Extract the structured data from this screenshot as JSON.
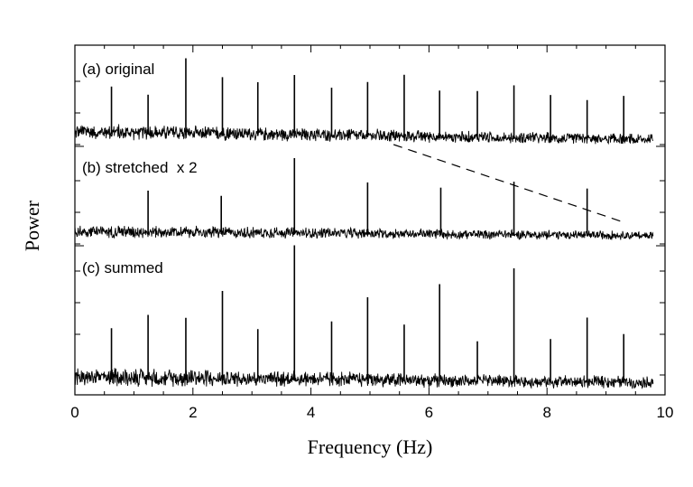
{
  "chart_data": {
    "type": "line",
    "title": "",
    "xlabel": "Frequency (Hz)",
    "ylabel": "Power",
    "xlim": [
      0,
      10
    ],
    "x_ticks": [
      "0",
      "2",
      "4",
      "6",
      "8",
      "10"
    ],
    "grid": false,
    "noise_floor_x_range": [
      0,
      9.8
    ],
    "series": [
      {
        "name": "(a) original",
        "color": "#000000",
        "peaks": [
          {
            "x": 0.62,
            "y": 0.62
          },
          {
            "x": 1.24,
            "y": 0.52
          },
          {
            "x": 1.88,
            "y": 1.0
          },
          {
            "x": 2.5,
            "y": 0.76
          },
          {
            "x": 3.1,
            "y": 0.7
          },
          {
            "x": 3.72,
            "y": 0.8
          },
          {
            "x": 4.35,
            "y": 0.64
          },
          {
            "x": 4.96,
            "y": 0.72
          },
          {
            "x": 5.58,
            "y": 0.82
          },
          {
            "x": 6.18,
            "y": 0.62
          },
          {
            "x": 6.82,
            "y": 0.62
          },
          {
            "x": 7.44,
            "y": 0.7
          },
          {
            "x": 8.06,
            "y": 0.58
          },
          {
            "x": 8.68,
            "y": 0.52
          },
          {
            "x": 9.3,
            "y": 0.58
          }
        ]
      },
      {
        "name": "(b) stretched  x 2",
        "color": "#000000",
        "peaks": [
          {
            "x": 1.24,
            "y": 0.54
          },
          {
            "x": 2.48,
            "y": 0.48
          },
          {
            "x": 3.72,
            "y": 0.96
          },
          {
            "x": 4.96,
            "y": 0.66
          },
          {
            "x": 6.2,
            "y": 0.6
          },
          {
            "x": 7.44,
            "y": 0.68
          },
          {
            "x": 8.68,
            "y": 0.6
          }
        ]
      },
      {
        "name": "(c) summed",
        "color": "#000000",
        "peaks": [
          {
            "x": 0.62,
            "y": 0.38
          },
          {
            "x": 1.24,
            "y": 0.48
          },
          {
            "x": 1.88,
            "y": 0.46
          },
          {
            "x": 2.5,
            "y": 0.66
          },
          {
            "x": 3.1,
            "y": 0.38
          },
          {
            "x": 3.72,
            "y": 1.0
          },
          {
            "x": 4.35,
            "y": 0.44
          },
          {
            "x": 4.96,
            "y": 0.62
          },
          {
            "x": 5.58,
            "y": 0.42
          },
          {
            "x": 6.18,
            "y": 0.72
          },
          {
            "x": 6.82,
            "y": 0.3
          },
          {
            "x": 7.44,
            "y": 0.84
          },
          {
            "x": 8.06,
            "y": 0.32
          },
          {
            "x": 8.68,
            "y": 0.48
          },
          {
            "x": 9.3,
            "y": 0.36
          }
        ]
      }
    ],
    "annotations": [
      {
        "type": "dashed-line",
        "from": {
          "x": 5.4,
          "y_panel_a": -0.08
        },
        "to": {
          "x": 9.3,
          "y_panel_b": 0.12
        }
      }
    ]
  }
}
